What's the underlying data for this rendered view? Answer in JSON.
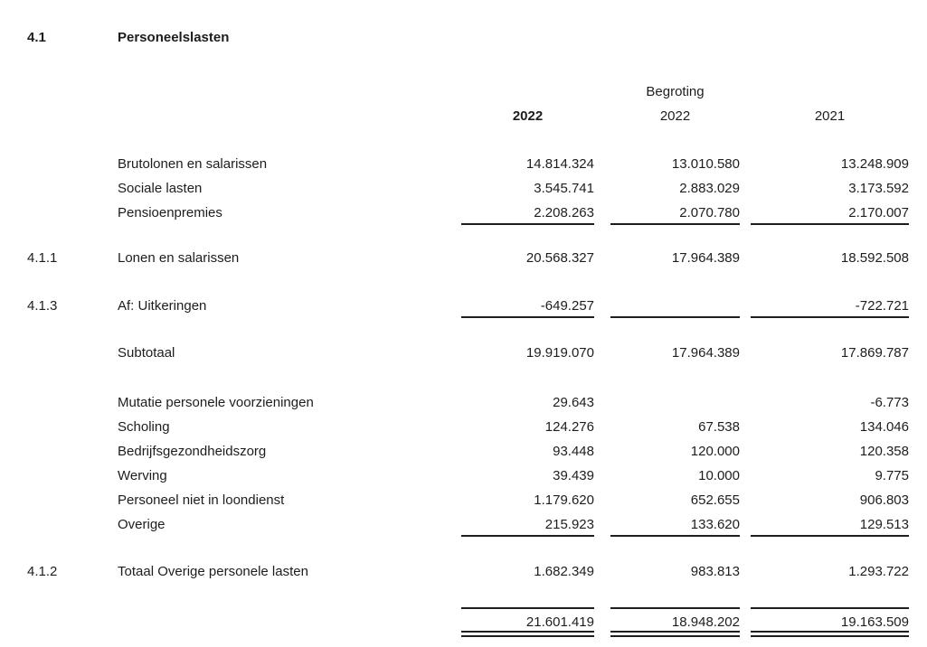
{
  "page": {
    "section_number": "4.1",
    "section_title": "Personeelslasten"
  },
  "table": {
    "headers": {
      "begroting": "Begroting",
      "year_col1": "2022",
      "year_col2": "2022",
      "year_col3": "2021"
    },
    "rows": [
      {
        "ref": "",
        "label": "Brutolonen en salarissen",
        "v1": "14.814.324",
        "v2": "13.010.580",
        "v3": "13.248.909"
      },
      {
        "ref": "",
        "label": "Sociale lasten",
        "v1": "3.545.741",
        "v2": "2.883.029",
        "v3": "3.173.592"
      },
      {
        "ref": "",
        "label": "Pensioenpremies",
        "v1": "2.208.263",
        "v2": "2.070.780",
        "v3": "2.170.007"
      },
      {
        "ref": "4.1.1",
        "label": "Lonen en salarissen",
        "v1": "20.568.327",
        "v2": "17.964.389",
        "v3": "18.592.508"
      },
      {
        "ref": "4.1.3",
        "label": "Af: Uitkeringen",
        "v1": "-649.257",
        "v2": "",
        "v3": "-722.721"
      },
      {
        "ref": "",
        "label": "Subtotaal",
        "v1": "19.919.070",
        "v2": "17.964.389",
        "v3": "17.869.787"
      },
      {
        "ref": "",
        "label": "Mutatie personele voorzieningen",
        "v1": "29.643",
        "v2": "",
        "v3": "-6.773"
      },
      {
        "ref": "",
        "label": "Scholing",
        "v1": "124.276",
        "v2": "67.538",
        "v3": "134.046"
      },
      {
        "ref": "",
        "label": "Bedrijfsgezondheidszorg",
        "v1": "93.448",
        "v2": "120.000",
        "v3": "120.358"
      },
      {
        "ref": "",
        "label": "Werving",
        "v1": "39.439",
        "v2": "10.000",
        "v3": "9.775"
      },
      {
        "ref": "",
        "label": "Personeel niet in loondienst",
        "v1": "1.179.620",
        "v2": "652.655",
        "v3": "906.803"
      },
      {
        "ref": "",
        "label": "Overige",
        "v1": "215.923",
        "v2": "133.620",
        "v3": "129.513"
      },
      {
        "ref": "4.1.2",
        "label": "Totaal Overige personele lasten",
        "v1": "1.682.349",
        "v2": "983.813",
        "v3": "1.293.722"
      },
      {
        "ref": "",
        "label": "",
        "v1": "21.601.419",
        "v2": "18.948.202",
        "v3": "19.163.509"
      }
    ]
  }
}
